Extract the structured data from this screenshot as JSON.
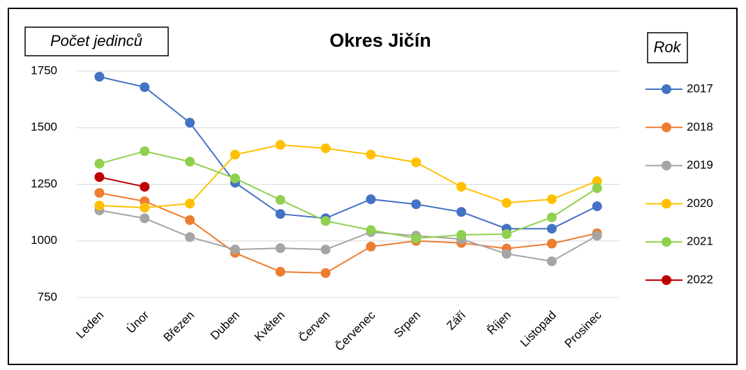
{
  "chart_data": {
    "type": "line",
    "title": "Okres Jičín",
    "y_label": "Počet jedinců",
    "legend_title": "Rok",
    "categories": [
      "Leden",
      "Únor",
      "Březen",
      "Duben",
      "Květen",
      "Červen",
      "Červenec",
      "Srpen",
      "Září",
      "Říjen",
      "Listopad",
      "Prosinec"
    ],
    "series": [
      {
        "name": "2017",
        "color": "#4472c4",
        "values": [
          1725,
          1679,
          1522,
          1257,
          1119,
          1100,
          1184,
          1162,
          1128,
          1054,
          1054,
          1153
        ]
      },
      {
        "name": "2018",
        "color": "#ed7d31",
        "values": [
          1212,
          1175,
          1092,
          947,
          864,
          858,
          975,
          1000,
          991,
          966,
          988,
          1034
        ]
      },
      {
        "name": "2019",
        "color": "#a5a5a5",
        "values": [
          1135,
          1100,
          1017,
          962,
          968,
          962,
          1039,
          1023,
          1008,
          943,
          910,
          1023
        ]
      },
      {
        "name": "2020",
        "color": "#ffc000",
        "values": [
          1156,
          1147,
          1165,
          1381,
          1424,
          1409,
          1381,
          1347,
          1239,
          1168,
          1184,
          1264
        ]
      },
      {
        "name": "2021",
        "color": "#8fd14f",
        "values": [
          1341,
          1396,
          1350,
          1276,
          1181,
          1088,
          1048,
          1011,
          1027,
          1030,
          1104,
          1233
        ]
      },
      {
        "name": "2022",
        "color": "#c00000",
        "values": [
          1282,
          1239,
          null,
          null,
          null,
          null,
          null,
          null,
          null,
          null,
          null,
          null
        ]
      }
    ],
    "ylim": [
      750,
      1750
    ],
    "yticks": [
      750,
      1000,
      1250,
      1500,
      1750
    ],
    "grid": true,
    "legend": "right"
  }
}
